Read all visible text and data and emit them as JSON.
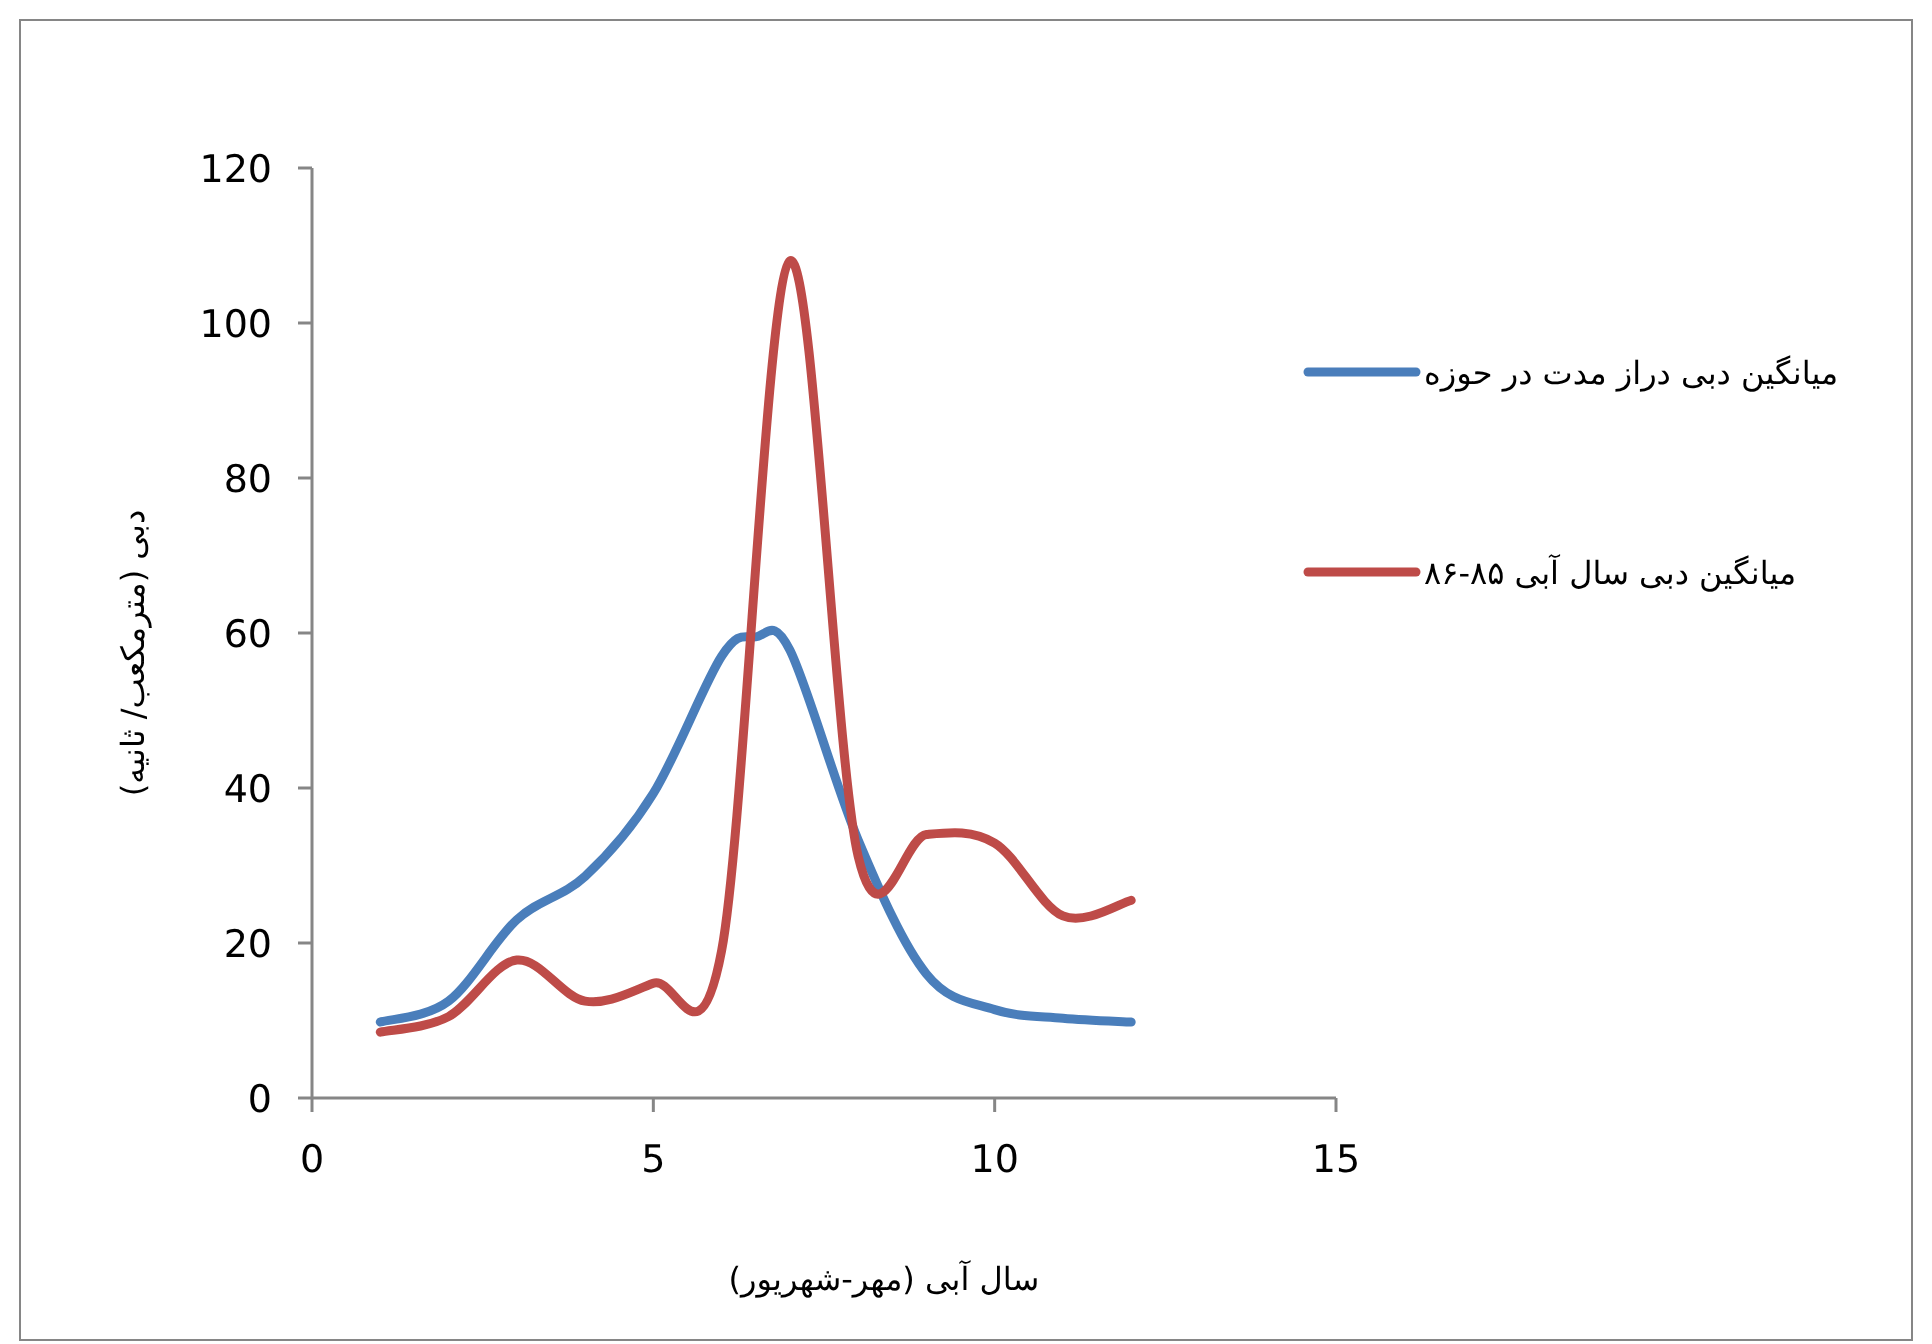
{
  "chart_data": {
    "type": "line",
    "xlabel": "سال آبی (مهر-شهریور)",
    "ylabel": "دبی (مترمکعب/ ثانیه)",
    "xlim": [
      0,
      15
    ],
    "xticks": [
      0,
      5,
      10,
      15
    ],
    "ylim": [
      0,
      120
    ],
    "yticks": [
      0,
      20,
      40,
      60,
      80,
      100,
      120
    ],
    "grid": false,
    "legend": "right",
    "marker": "none",
    "line_style": "solid",
    "series": [
      {
        "name": "میانگین دبی دراز مدت در حوزه",
        "color": "#4a7ebb",
        "x": [
          1,
          2,
          3,
          4,
          5,
          6,
          6.5,
          7,
          8,
          9,
          10,
          11,
          12
        ],
        "values": [
          9.8,
          12.5,
          23,
          28.6,
          39.3,
          57,
          59.5,
          57.8,
          33.3,
          16,
          11.4,
          10.3,
          9.8
        ]
      },
      {
        "name": "میانگین دبی سال آبی ۸۵-۸۶",
        "color": "#be4b48",
        "x": [
          1,
          2,
          3,
          4,
          5,
          6,
          7,
          8,
          9,
          10,
          11,
          12
        ],
        "values": [
          8.5,
          10.5,
          17.8,
          12.5,
          14.8,
          19,
          108,
          31.2,
          34,
          32.9,
          23.5,
          25.5
        ]
      }
    ]
  }
}
